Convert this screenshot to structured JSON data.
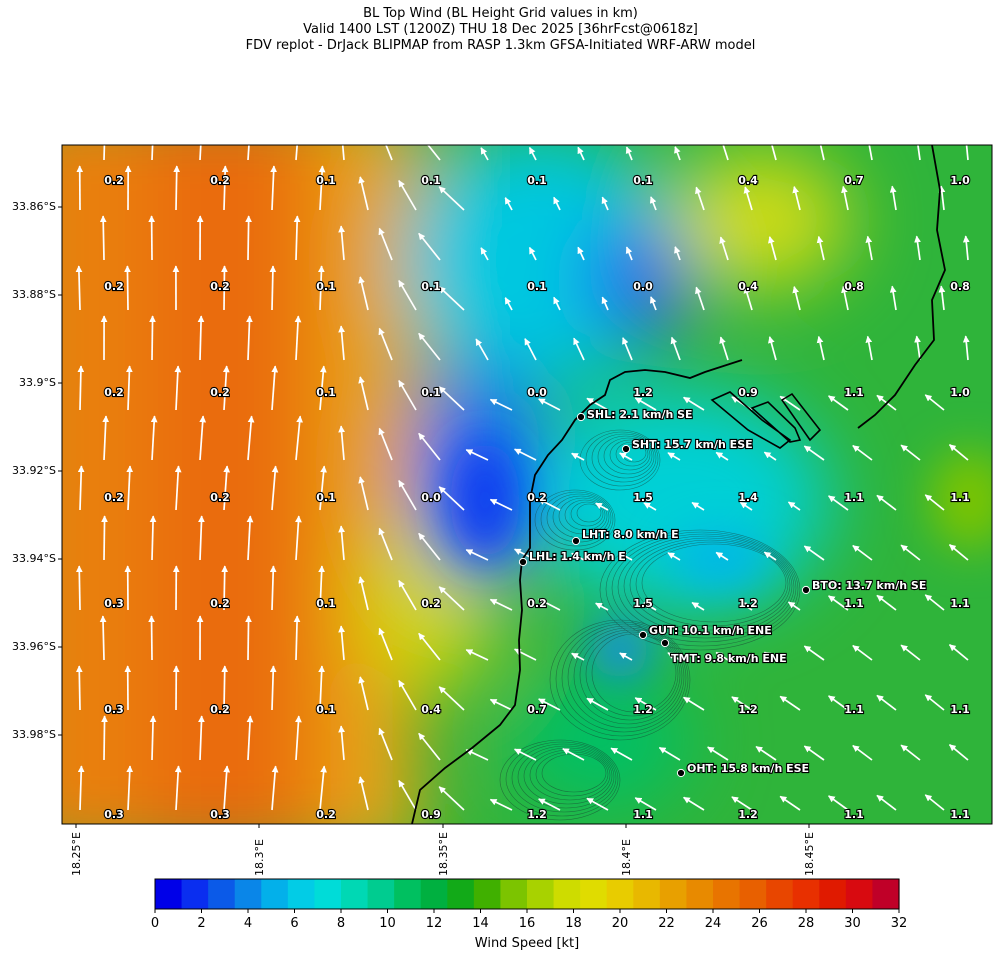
{
  "title": {
    "line1": "BL Top Wind (BL Height Grid values in km)",
    "line2": "Valid 1400 LST (1200Z) THU 18 Dec 2025 [36hrFcst@0618z]",
    "line3": "FDV replot - DrJack BLIPMAP from RASP 1.3km GFSA-Initiated WRF-ARW model"
  },
  "axes": {
    "lat_labels": [
      "33.86°S",
      "33.88°S",
      "33.9°S",
      "33.92°S",
      "33.94°S",
      "33.96°S",
      "33.98°S"
    ],
    "lon_labels": [
      "18.25°E",
      "18.3°E",
      "18.35°E",
      "18.4°E",
      "18.45°E"
    ]
  },
  "grid_values": [
    [
      "0.2",
      "0.2",
      "0.1",
      "0.1",
      "0.1",
      "0.1",
      "0.4",
      "0.7",
      "1.0"
    ],
    [
      "0.2",
      "0.2",
      "0.1",
      "0.1",
      "0.1",
      "0.0",
      "0.4",
      "0.8",
      "0.8"
    ],
    [
      "0.2",
      "0.2",
      "0.1",
      "0.1",
      "0.0",
      "1.2",
      "0.9",
      "1.1",
      "1.0"
    ],
    [
      "0.2",
      "0.2",
      "0.1",
      "0.0",
      "0.2",
      "1.5",
      "1.4",
      "1.1",
      "1.1"
    ],
    [
      "0.3",
      "0.2",
      "0.1",
      "0.2",
      "0.2",
      "1.5",
      "1.2",
      "1.1",
      "1.1"
    ],
    [
      "0.3",
      "0.2",
      "0.1",
      "0.4",
      "0.7",
      "1.2",
      "1.2",
      "1.1",
      "1.1"
    ],
    [
      "0.3",
      "0.3",
      "0.2",
      "0.9",
      "1.2",
      "1.1",
      "1.2",
      "1.1",
      "1.1"
    ]
  ],
  "stations": [
    {
      "label": "SHL: 2.1 km/h SE"
    },
    {
      "label": "SHT: 15.7 km/h ESE"
    },
    {
      "label": "LHT: 8.0 km/h E"
    },
    {
      "label": "LHL: 1.4 km/h E"
    },
    {
      "label": "BTO: 13.7 km/h SE"
    },
    {
      "label": "GUT: 10.1 km/h ENE"
    },
    {
      "label": "TMT: 9.8 km/h ENE"
    },
    {
      "label": "OHT: 15.8 km/h ESE"
    }
  ],
  "colorbar": {
    "ticks": [
      "0",
      "2",
      "4",
      "6",
      "8",
      "10",
      "12",
      "14",
      "16",
      "18",
      "20",
      "22",
      "24",
      "26",
      "28",
      "30",
      "32"
    ],
    "label": "Wind Speed [kt]",
    "colors": [
      "#0000e8",
      "#0a2ef0",
      "#0b5ae8",
      "#0a86e8",
      "#03b0ea",
      "#02cce6",
      "#00dcd8",
      "#00d8b4",
      "#00cc90",
      "#00c060",
      "#00b040",
      "#12aa18",
      "#40b000",
      "#7cc400",
      "#a8d200",
      "#cedc00",
      "#e0dc00",
      "#e8cc00",
      "#e8b800",
      "#e8a000",
      "#e88a00",
      "#e87400",
      "#e86000",
      "#e84600",
      "#e83000",
      "#e01a00",
      "#d80a10",
      "#c00028"
    ],
    "vmin": 0,
    "vmax": 32
  }
}
